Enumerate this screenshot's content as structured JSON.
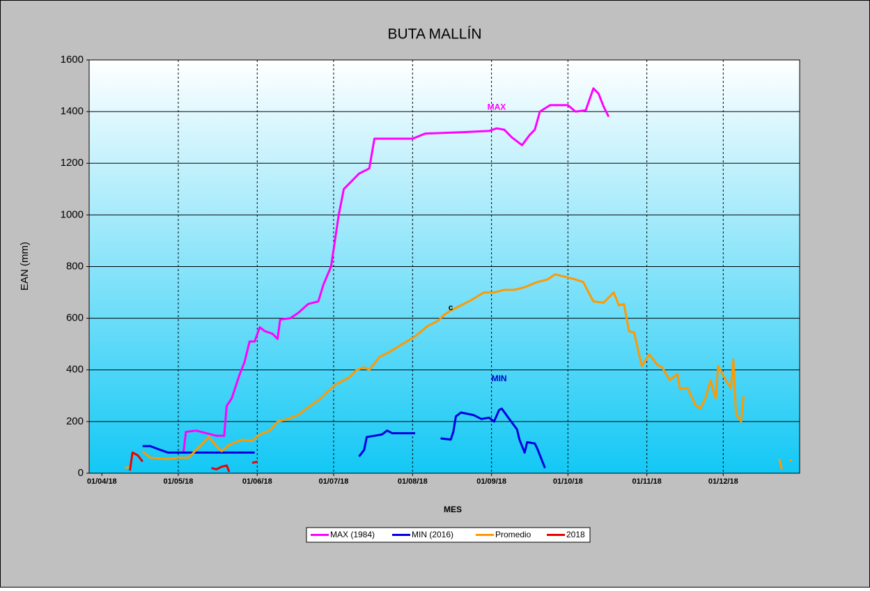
{
  "chart_data": {
    "type": "line",
    "title": "BUTA MALLÍN",
    "xlabel": "MES",
    "ylabel": "EAN (mm)",
    "xlim": [
      "27/03/18",
      "31/12/18"
    ],
    "xticks": [
      "01/04/18",
      "01/05/18",
      "01/06/18",
      "01/07/18",
      "01/08/18",
      "01/09/18",
      "01/10/18",
      "01/11/18",
      "01/12/18"
    ],
    "ylim": [
      0,
      1600
    ],
    "yticks": [
      0,
      200,
      400,
      600,
      800,
      1000,
      1200,
      1400,
      1600
    ],
    "grid": true,
    "legend": "bottom",
    "annotations": [
      {
        "text": "MAX",
        "x": "03/09/18",
        "y": 1415,
        "color": "#ff00ff"
      },
      {
        "text": "c",
        "x": "16/08/18",
        "y": 640,
        "color": "#000000"
      },
      {
        "text": "MIN",
        "x": "04/09/18",
        "y": 365,
        "color": "#0000cc"
      }
    ],
    "series": [
      {
        "name": "MAX (1984)",
        "color": "#ff00ff",
        "x": [
          "03/05/18",
          "04/05/18",
          "08/05/18",
          "12/05/18",
          "16/05/18",
          "19/05/18",
          "20/05/18",
          "22/05/18",
          "25/05/18",
          "27/05/18",
          "29/05/18",
          "31/05/18",
          "02/06/18",
          "04/06/18",
          "07/06/18",
          "09/06/18",
          "10/06/18",
          "14/06/18",
          "17/06/18",
          "21/06/18",
          "25/06/18",
          "27/06/18",
          "30/06/18",
          "03/07/18",
          "05/07/18",
          "08/07/18",
          "11/07/18",
          "15/07/18",
          "17/07/18",
          "25/07/18",
          "01/08/18",
          "06/08/18",
          "20/08/18",
          "31/08/18",
          "03/09/18",
          "06/09/18",
          "09/09/18",
          "13/09/18",
          "16/09/18",
          "18/09/18",
          "20/09/18",
          "24/09/18",
          "01/10/18",
          "04/10/18",
          "08/10/18",
          "11/10/18",
          "13/10/18",
          "15/10/18",
          "17/10/18"
        ],
        "values": [
          80,
          160,
          165,
          155,
          145,
          145,
          260,
          290,
          380,
          430,
          510,
          510,
          565,
          550,
          540,
          520,
          595,
          600,
          620,
          655,
          665,
          730,
          800,
          1000,
          1100,
          1130,
          1160,
          1180,
          1295,
          1295,
          1295,
          1315,
          1320,
          1325,
          1335,
          1330,
          1300,
          1270,
          1310,
          1330,
          1400,
          1425,
          1425,
          1400,
          1405,
          1490,
          1470,
          1420,
          1380
        ]
      },
      {
        "name": "MIN (2016)",
        "color": "#0000dd",
        "x": [
          "17/04/18",
          "20/04/18",
          "24/04/18",
          "27/04/18",
          "31/05/18",
          "15/06/18",
          "11/07/18",
          "13/07/18",
          "14/07/18",
          "17/07/18",
          "20/07/18",
          "22/07/18",
          "24/07/18",
          "02/08/18",
          "07/08/18",
          "12/08/18",
          "16/08/18",
          "17/08/18",
          "18/08/18",
          "20/08/18",
          "25/08/18",
          "28/08/18",
          "31/08/18",
          "02/09/18",
          "04/09/18",
          "05/09/18",
          "08/09/18",
          "11/09/18",
          "12/09/18",
          "14/09/18",
          "15/09/18",
          "18/09/18",
          "19/09/18",
          "22/09/18"
        ],
        "values": [
          105,
          105,
          90,
          80,
          80,
          null,
          65,
          90,
          140,
          145,
          150,
          165,
          155,
          155,
          null,
          135,
          130,
          160,
          220,
          235,
          225,
          210,
          215,
          200,
          245,
          250,
          210,
          170,
          130,
          80,
          120,
          115,
          95,
          20
        ]
      },
      {
        "name": "Promedio",
        "color": "#ff9900",
        "x": [
          "10/04/18",
          "12/04/18",
          "15/04/18",
          "17/04/18",
          "20/04/18",
          "27/04/18",
          "01/05/18",
          "05/05/18",
          "09/05/18",
          "13/05/18",
          "16/05/18",
          "18/05/18",
          "21/05/18",
          "26/05/18",
          "30/05/18",
          "02/06/18",
          "06/06/18",
          "09/06/18",
          "13/06/18",
          "17/06/18",
          "21/06/18",
          "26/06/18",
          "28/06/18",
          "02/07/18",
          "07/07/18",
          "10/07/18",
          "13/07/18",
          "15/07/18",
          "19/07/18",
          "23/07/18",
          "28/07/18",
          "02/08/18",
          "07/08/18",
          "11/08/18",
          "13/08/18",
          "16/08/18",
          "20/08/18",
          "24/08/18",
          "29/08/18",
          "02/09/18",
          "06/09/18",
          "10/09/18",
          "14/09/18",
          "19/09/18",
          "23/09/18",
          "26/09/18",
          "30/09/18",
          "04/10/18",
          "07/10/18",
          "11/10/18",
          "15/10/18",
          "19/10/18",
          "21/10/18",
          "23/10/18",
          "25/10/18",
          "27/10/18",
          "30/10/18",
          "02/11/18",
          "05/11/18",
          "07/11/18",
          "10/11/18",
          "13/11/18",
          "14/11/18",
          "17/11/18",
          "20/11/18",
          "22/11/18",
          "24/11/18",
          "26/11/18",
          "28/11/18",
          "29/11/18",
          "02/12/18",
          "04/12/18",
          "05/12/18",
          "06/12/18",
          "08/12/18",
          "09/12/18",
          "16/12/18",
          "23/12/18",
          "24/12/18",
          "26/12/18",
          "27/12/18",
          "28/12/18"
        ],
        "values": [
          20,
          25,
          null,
          85,
          60,
          55,
          60,
          60,
          100,
          140,
          105,
          85,
          110,
          130,
          125,
          150,
          165,
          200,
          210,
          225,
          255,
          290,
          310,
          345,
          370,
          400,
          410,
          400,
          450,
          470,
          500,
          530,
          570,
          590,
          610,
          630,
          650,
          670,
          700,
          700,
          710,
          710,
          720,
          740,
          750,
          770,
          760,
          750,
          740,
          665,
          660,
          700,
          650,
          655,
          550,
          545,
          415,
          460,
          420,
          410,
          360,
          385,
          325,
          330,
          265,
          250,
          290,
          360,
          290,
          415,
          360,
          330,
          440,
          230,
          200,
          300,
          null,
          55,
          15,
          null,
          50,
          50
        ]
      },
      {
        "name": "2018",
        "color": "#ee0000",
        "x": [
          "12/04/18",
          "13/04/18",
          "15/04/18",
          "17/04/18",
          "01/05/18",
          "14/05/18",
          "16/05/18",
          "18/05/18",
          "20/05/18",
          "21/05/18",
          "25/05/18",
          "30/05/18",
          "01/06/18"
        ],
        "values": [
          10,
          80,
          70,
          45,
          null,
          20,
          15,
          25,
          30,
          5,
          null,
          40,
          45
        ]
      }
    ]
  }
}
